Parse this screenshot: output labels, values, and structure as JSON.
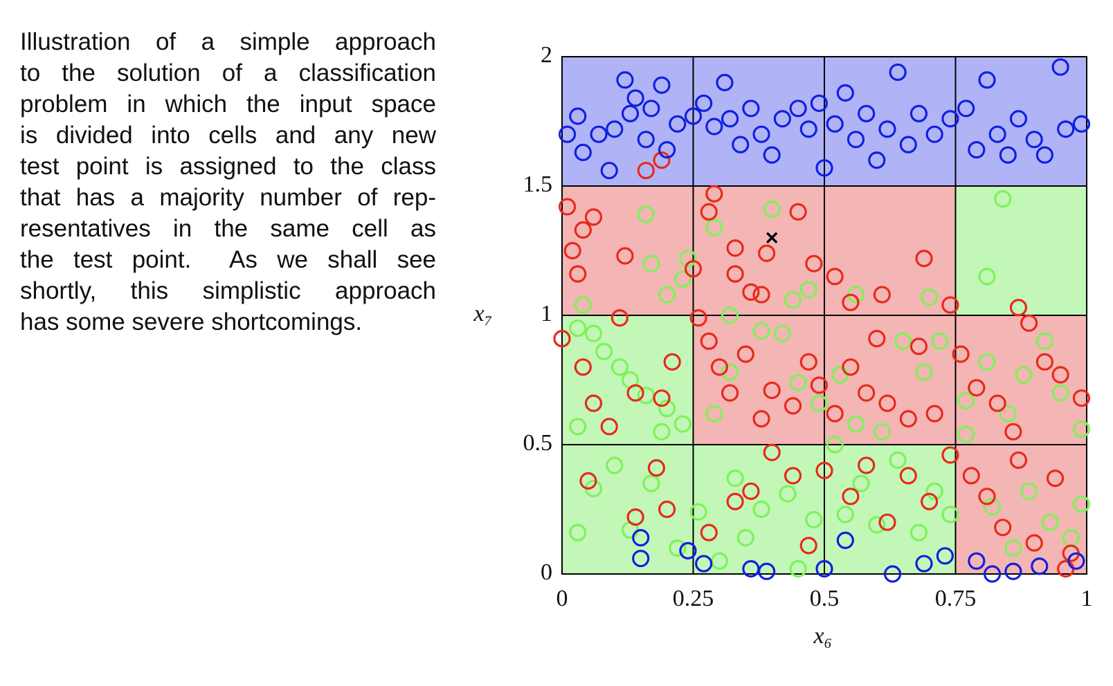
{
  "caption_lines": [
    "Illustration of a simple approach",
    "to the solution of a classification",
    "problem in which the input space",
    "is divided into cells and any new",
    "test point is assigned to the class",
    "that has a majority number of rep-",
    "resentatives in the same cell as",
    "the test point.  As we shall see",
    "shortly, this simplistic approach",
    "has some severe shortcomings."
  ],
  "chart_data": {
    "type": "scatter",
    "xlabel": "x₆",
    "ylabel": "x₇",
    "xlim": [
      0,
      1
    ],
    "ylim": [
      0,
      2
    ],
    "xticks": [
      0,
      0.25,
      0.5,
      0.75,
      1
    ],
    "yticks": [
      0,
      0.5,
      1,
      1.5,
      2
    ],
    "grid": true,
    "cell_colors": [
      [
        "#b0b4f7",
        "#b0b4f7",
        "#b0b4f7",
        "#b0b4f7"
      ],
      [
        "#f3b6b4",
        "#f3b6b4",
        "#f3b6b4",
        "#c2f7b8"
      ],
      [
        "#c2f7b8",
        "#f3b6b4",
        "#f3b6b4",
        "#f3b6b4"
      ],
      [
        "#c2f7b8",
        "#c2f7b8",
        "#c2f7b8",
        "#f3b6b4"
      ]
    ],
    "marker": {
      "x": 0.4,
      "y": 1.3,
      "color": "#000000"
    },
    "series": [
      {
        "color": "#7ef25a",
        "x": [
          0.16,
          0.29,
          0.4,
          0.24,
          0.17,
          0.23,
          0.2,
          0.32,
          0.44,
          0.47,
          0.56,
          0.7,
          0.84,
          0.81,
          0.04,
          0.03,
          0.06,
          0.08,
          0.11,
          0.13,
          0.16,
          0.2,
          0.23,
          0.29,
          0.32,
          0.38,
          0.42,
          0.45,
          0.49,
          0.53,
          0.56,
          0.61,
          0.65,
          0.69,
          0.72,
          0.77,
          0.81,
          0.85,
          0.88,
          0.92,
          0.95,
          0.99,
          0.03,
          0.06,
          0.1,
          0.03,
          0.13,
          0.17,
          0.19,
          0.22,
          0.26,
          0.3,
          0.33,
          0.35,
          0.38,
          0.43,
          0.45,
          0.48,
          0.52,
          0.54,
          0.57,
          0.6,
          0.64,
          0.68,
          0.71,
          0.74,
          0.77,
          0.82,
          0.86,
          0.89,
          0.93,
          0.97,
          0.99
        ],
        "values": [
          1.39,
          1.34,
          1.41,
          1.22,
          1.2,
          1.14,
          1.08,
          1.0,
          1.06,
          1.1,
          1.08,
          1.07,
          1.45,
          1.15,
          1.04,
          0.95,
          0.93,
          0.86,
          0.8,
          0.75,
          0.69,
          0.64,
          0.58,
          0.62,
          0.78,
          0.94,
          0.93,
          0.74,
          0.66,
          0.77,
          0.58,
          0.55,
          0.9,
          0.78,
          0.9,
          0.67,
          0.82,
          0.62,
          0.77,
          0.9,
          0.7,
          0.56,
          0.57,
          0.33,
          0.42,
          0.16,
          0.17,
          0.35,
          0.55,
          0.1,
          0.24,
          0.05,
          0.37,
          0.14,
          0.25,
          0.31,
          0.02,
          0.21,
          0.5,
          0.23,
          0.35,
          0.19,
          0.44,
          0.16,
          0.32,
          0.23,
          0.54,
          0.26,
          0.1,
          0.32,
          0.2,
          0.14,
          0.27
        ]
      },
      {
        "color": "#e8291c",
        "x": [
          0.01,
          0.02,
          0.03,
          0.04,
          0.06,
          0.12,
          0.16,
          0.19,
          0.25,
          0.28,
          0.29,
          0.33,
          0.33,
          0.36,
          0.38,
          0.39,
          0.45,
          0.48,
          0.52,
          0.55,
          0.61,
          0.69,
          0.74,
          0.87,
          0.0,
          0.04,
          0.06,
          0.09,
          0.11,
          0.14,
          0.19,
          0.21,
          0.26,
          0.28,
          0.3,
          0.32,
          0.35,
          0.38,
          0.4,
          0.44,
          0.47,
          0.49,
          0.52,
          0.55,
          0.58,
          0.6,
          0.62,
          0.66,
          0.68,
          0.71,
          0.76,
          0.79,
          0.83,
          0.86,
          0.89,
          0.92,
          0.95,
          0.99,
          0.05,
          0.14,
          0.18,
          0.2,
          0.28,
          0.33,
          0.36,
          0.4,
          0.44,
          0.47,
          0.5,
          0.55,
          0.58,
          0.62,
          0.66,
          0.7,
          0.74,
          0.78,
          0.81,
          0.84,
          0.87,
          0.9,
          0.94,
          0.97,
          0.96
        ],
        "values": [
          1.42,
          1.25,
          1.16,
          1.33,
          1.38,
          1.23,
          1.56,
          1.6,
          1.18,
          1.4,
          1.47,
          1.26,
          1.16,
          1.09,
          1.08,
          1.24,
          1.4,
          1.2,
          1.15,
          1.05,
          1.08,
          1.22,
          1.04,
          1.03,
          0.91,
          0.8,
          0.66,
          0.57,
          0.99,
          0.7,
          0.68,
          0.82,
          0.99,
          0.9,
          0.8,
          0.7,
          0.85,
          0.6,
          0.71,
          0.65,
          0.82,
          0.73,
          0.62,
          0.8,
          0.7,
          0.91,
          0.66,
          0.6,
          0.88,
          0.62,
          0.85,
          0.72,
          0.66,
          0.55,
          0.97,
          0.82,
          0.77,
          0.68,
          0.36,
          0.22,
          0.41,
          0.25,
          0.16,
          0.28,
          0.32,
          0.47,
          0.38,
          0.11,
          0.4,
          0.3,
          0.42,
          0.2,
          0.38,
          0.28,
          0.46,
          0.38,
          0.3,
          0.18,
          0.44,
          0.12,
          0.37,
          0.08,
          0.02
        ]
      },
      {
        "color": "#1020e0",
        "x": [
          0.03,
          0.01,
          0.04,
          0.07,
          0.09,
          0.1,
          0.12,
          0.13,
          0.14,
          0.16,
          0.17,
          0.19,
          0.2,
          0.22,
          0.25,
          0.27,
          0.29,
          0.31,
          0.32,
          0.34,
          0.36,
          0.38,
          0.4,
          0.42,
          0.45,
          0.47,
          0.49,
          0.5,
          0.52,
          0.54,
          0.56,
          0.58,
          0.6,
          0.62,
          0.64,
          0.66,
          0.68,
          0.71,
          0.74,
          0.77,
          0.79,
          0.81,
          0.83,
          0.85,
          0.87,
          0.9,
          0.92,
          0.95,
          0.96,
          0.99,
          0.15,
          0.15,
          0.24,
          0.27,
          0.36,
          0.39,
          0.5,
          0.54,
          0.63,
          0.69,
          0.73,
          0.79,
          0.82,
          0.86,
          0.91,
          0.98
        ],
        "values": [
          1.77,
          1.7,
          1.63,
          1.7,
          1.56,
          1.72,
          1.91,
          1.78,
          1.84,
          1.68,
          1.8,
          1.89,
          1.64,
          1.74,
          1.77,
          1.82,
          1.73,
          1.9,
          1.76,
          1.66,
          1.8,
          1.7,
          1.62,
          1.76,
          1.8,
          1.72,
          1.82,
          1.57,
          1.74,
          1.86,
          1.68,
          1.78,
          1.6,
          1.72,
          1.94,
          1.66,
          1.78,
          1.7,
          1.76,
          1.8,
          1.64,
          1.91,
          1.7,
          1.62,
          1.76,
          1.68,
          1.62,
          1.96,
          1.72,
          1.74,
          0.14,
          0.06,
          0.09,
          0.04,
          0.02,
          0.01,
          0.02,
          0.13,
          0.0,
          0.04,
          0.07,
          0.05,
          0.0,
          0.01,
          0.03,
          0.05
        ]
      }
    ]
  }
}
